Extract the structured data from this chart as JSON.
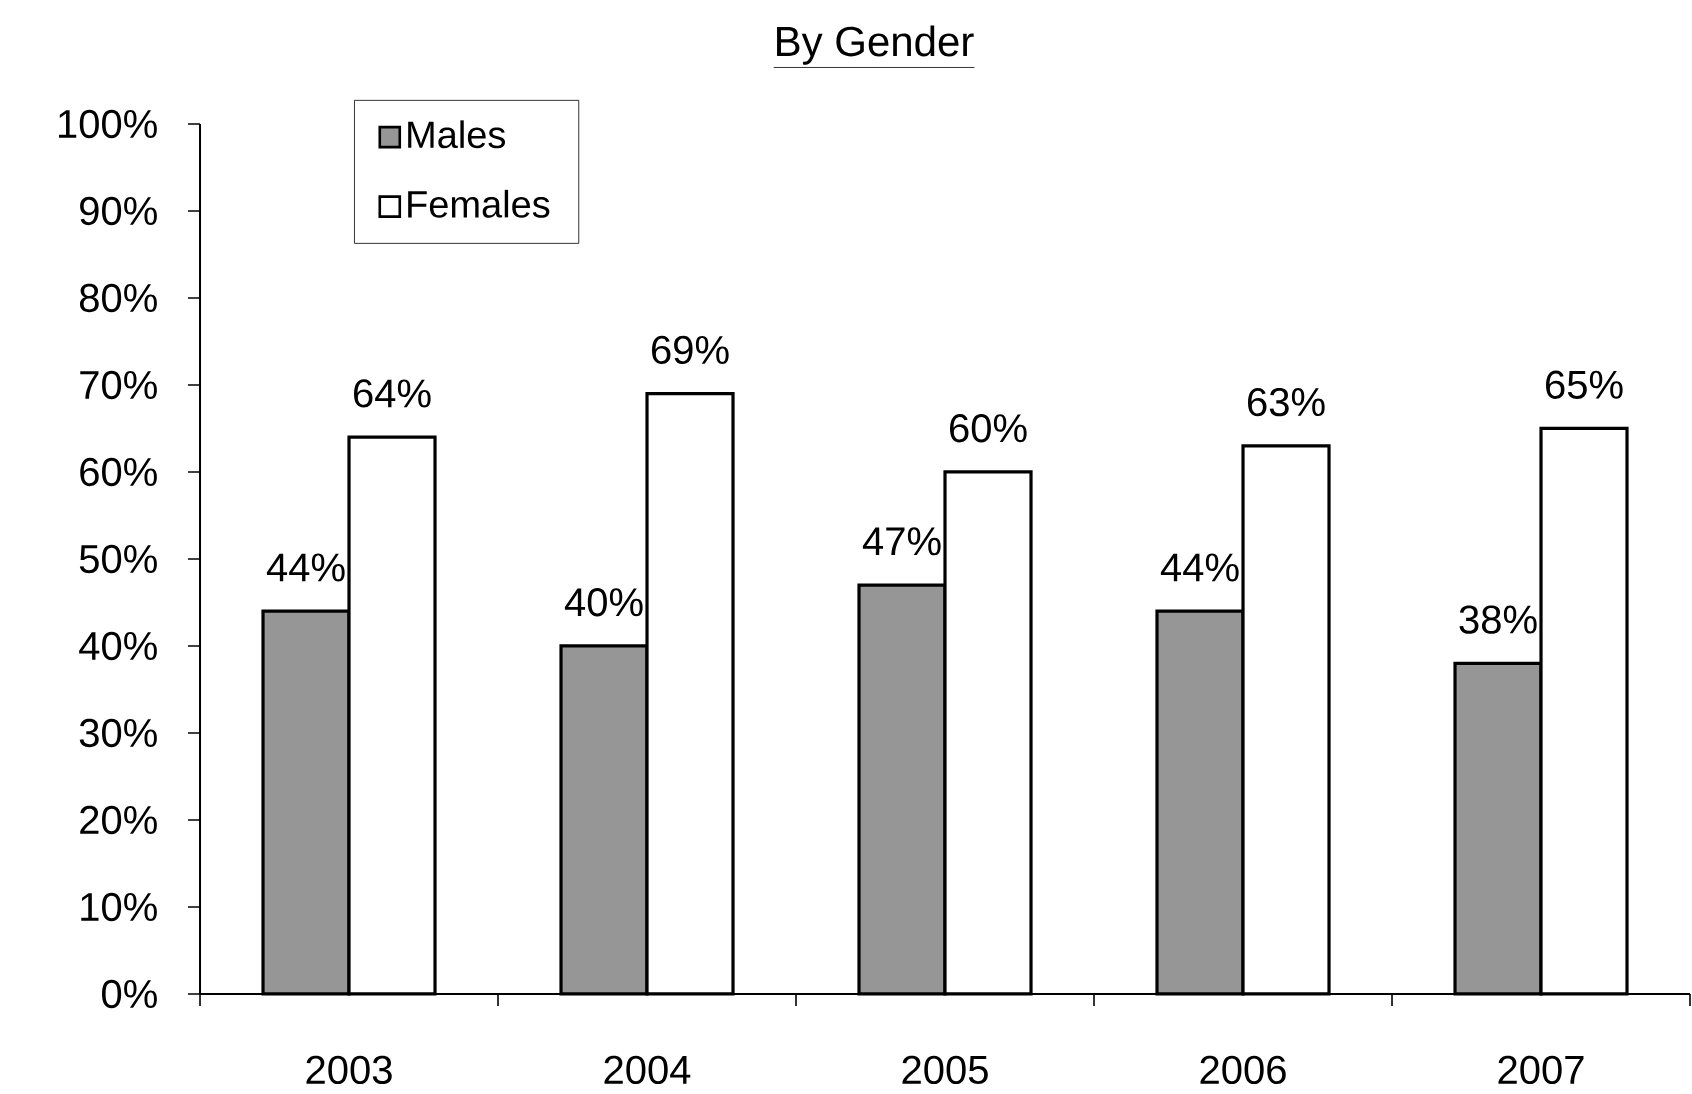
{
  "chart_data": {
    "type": "bar",
    "title": "By Gender",
    "categories": [
      "2003",
      "2004",
      "2005",
      "2006",
      "2007"
    ],
    "series": [
      {
        "name": "Males",
        "color": "#969696",
        "values": [
          44,
          40,
          47,
          44,
          38
        ],
        "value_labels": [
          "44%",
          "40%",
          "47%",
          "44%",
          "38%"
        ]
      },
      {
        "name": "Females",
        "color": "#ffffff",
        "values": [
          64,
          69,
          60,
          63,
          65
        ],
        "value_labels": [
          "64%",
          "69%",
          "60%",
          "63%",
          "65%"
        ]
      }
    ],
    "ylim": [
      0,
      100
    ],
    "yticks": [
      {
        "value": 0,
        "label": "0%"
      },
      {
        "value": 10,
        "label": "10%"
      },
      {
        "value": 20,
        "label": "20%"
      },
      {
        "value": 30,
        "label": "30%"
      },
      {
        "value": 40,
        "label": "40%"
      },
      {
        "value": 50,
        "label": "50%"
      },
      {
        "value": 60,
        "label": "60%"
      },
      {
        "value": 70,
        "label": "70%"
      },
      {
        "value": 80,
        "label": "80%"
      },
      {
        "value": 90,
        "label": "90%"
      },
      {
        "value": 100,
        "label": "100%"
      }
    ],
    "legend": "top left"
  }
}
